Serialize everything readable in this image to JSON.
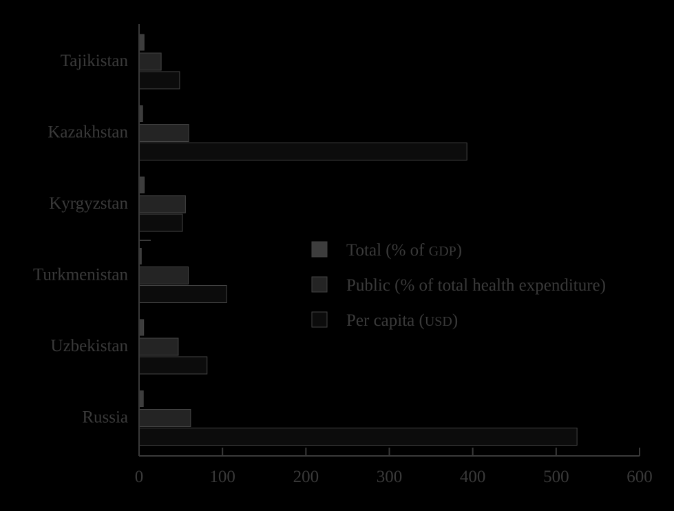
{
  "chart_data": {
    "type": "bar",
    "orientation": "horizontal",
    "title": "",
    "xlabel": "",
    "ylabel": "",
    "xlim": [
      0,
      600
    ],
    "x_ticks": [
      0,
      100,
      200,
      300,
      400,
      500,
      600
    ],
    "grid": false,
    "legend_placement": "center-right",
    "categories": [
      "Tajikistan",
      "Kazakhstan",
      "Kyrgyzstan",
      "Turkmenistan",
      "Uzbekistan",
      "Russia"
    ],
    "series": [
      {
        "name": "Total (% of GDP)",
        "color": "#3d3d3d",
        "values": [
          6.0,
          4.3,
          6.2,
          2.7,
          5.5,
          5.1
        ]
      },
      {
        "name": "Public (% of total health expenditure)",
        "color": "#242424",
        "values": [
          26.5,
          59.5,
          55.6,
          59.0,
          47.0,
          61.8
        ]
      },
      {
        "name": "Per capita (USD)",
        "color": "#0c0c0c",
        "values": [
          48.6,
          393,
          52.0,
          105,
          81.5,
          525
        ]
      }
    ],
    "legend_entries": [
      {
        "prefix": "Total (% of ",
        "small_caps": "GDP",
        "suffix": ")"
      },
      {
        "prefix": "Public (% of total health expenditure)",
        "small_caps": "",
        "suffix": ""
      },
      {
        "prefix": "Per capita (",
        "small_caps": "USD",
        "suffix": ")"
      }
    ],
    "text_color": "#3a3a3a",
    "axis_color": "#3a3a3a",
    "bar_stroke_color": "#444444"
  }
}
